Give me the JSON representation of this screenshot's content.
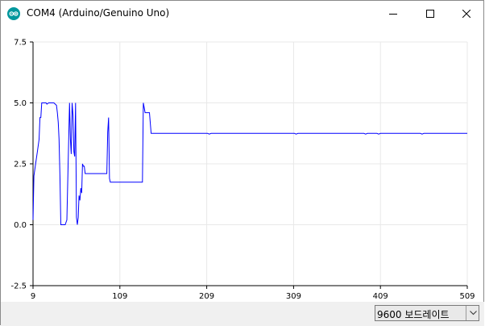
{
  "window": {
    "title": "COM4 (Arduino/Genuino Uno)",
    "icon": "arduino-logo-icon",
    "controls": [
      "minimize-icon",
      "maximize-icon",
      "close-icon"
    ]
  },
  "footer": {
    "baud_select": "9600 보드레이트"
  },
  "colors": {
    "line": "#0000ff",
    "grid": "#e8e8e8",
    "accent": "#00979d"
  },
  "chart_data": {
    "type": "line",
    "title": "",
    "xlabel": "",
    "ylabel": "",
    "xlim": [
      9,
      509
    ],
    "ylim": [
      -2.5,
      7.5
    ],
    "x_ticks": [
      "9",
      "109",
      "209",
      "309",
      "409",
      "509"
    ],
    "y_ticks": [
      "7.5",
      "5.0",
      "2.5",
      "0.0",
      "-2.5"
    ],
    "grid": true,
    "series": [
      {
        "name": "",
        "color": "#0000ff",
        "x": [
          9,
          10,
          12,
          14,
          16,
          17,
          18,
          19,
          20,
          22,
          24,
          25,
          27,
          30,
          33,
          36,
          37,
          38,
          39,
          40,
          41,
          42,
          43,
          44,
          46,
          48,
          51,
          52,
          53,
          54,
          55,
          56,
          57,
          58,
          59,
          60,
          61,
          62,
          63,
          64,
          65,
          66,
          67,
          68,
          69,
          70,
          72,
          74,
          76,
          78,
          80,
          82,
          84,
          86,
          88,
          90,
          92,
          94,
          95,
          96,
          97,
          98,
          100,
          105,
          110,
          115,
          120,
          125,
          130,
          135,
          136,
          137,
          138,
          139,
          140,
          141,
          142,
          143,
          145,
          150,
          160,
          180,
          200,
          210,
          212,
          214,
          250,
          300,
          310,
          312,
          314,
          350,
          390,
          392,
          394,
          400,
          405,
          407,
          409,
          450,
          455,
          457,
          459,
          470,
          500,
          509
        ],
        "y": [
          0.2,
          2.0,
          2.5,
          3.0,
          3.5,
          4.4,
          4.4,
          5.0,
          5.0,
          5.0,
          5.0,
          4.95,
          5.0,
          5.0,
          5.0,
          4.9,
          4.6,
          4.2,
          3.5,
          2.0,
          0.0,
          0.0,
          0.0,
          0.0,
          0.0,
          0.2,
          5.0,
          3.5,
          2.9,
          5.0,
          4.5,
          3.0,
          2.8,
          5.0,
          0.3,
          0.0,
          0.3,
          1.2,
          1.0,
          1.5,
          1.3,
          2.5,
          2.4,
          2.4,
          2.1,
          2.1,
          2.1,
          2.1,
          2.1,
          2.1,
          2.1,
          2.1,
          2.1,
          2.1,
          2.1,
          2.1,
          2.1,
          2.1,
          3.8,
          4.4,
          1.9,
          1.75,
          1.75,
          1.75,
          1.75,
          1.75,
          1.75,
          1.75,
          1.75,
          1.75,
          5.0,
          4.8,
          4.6,
          4.6,
          4.6,
          4.6,
          4.6,
          4.6,
          3.75,
          3.75,
          3.75,
          3.75,
          3.75,
          3.75,
          3.72,
          3.75,
          3.75,
          3.75,
          3.75,
          3.72,
          3.75,
          3.75,
          3.75,
          3.72,
          3.75,
          3.75,
          3.75,
          3.72,
          3.75,
          3.75,
          3.75,
          3.72,
          3.75,
          3.75,
          3.75,
          3.75
        ]
      }
    ]
  }
}
